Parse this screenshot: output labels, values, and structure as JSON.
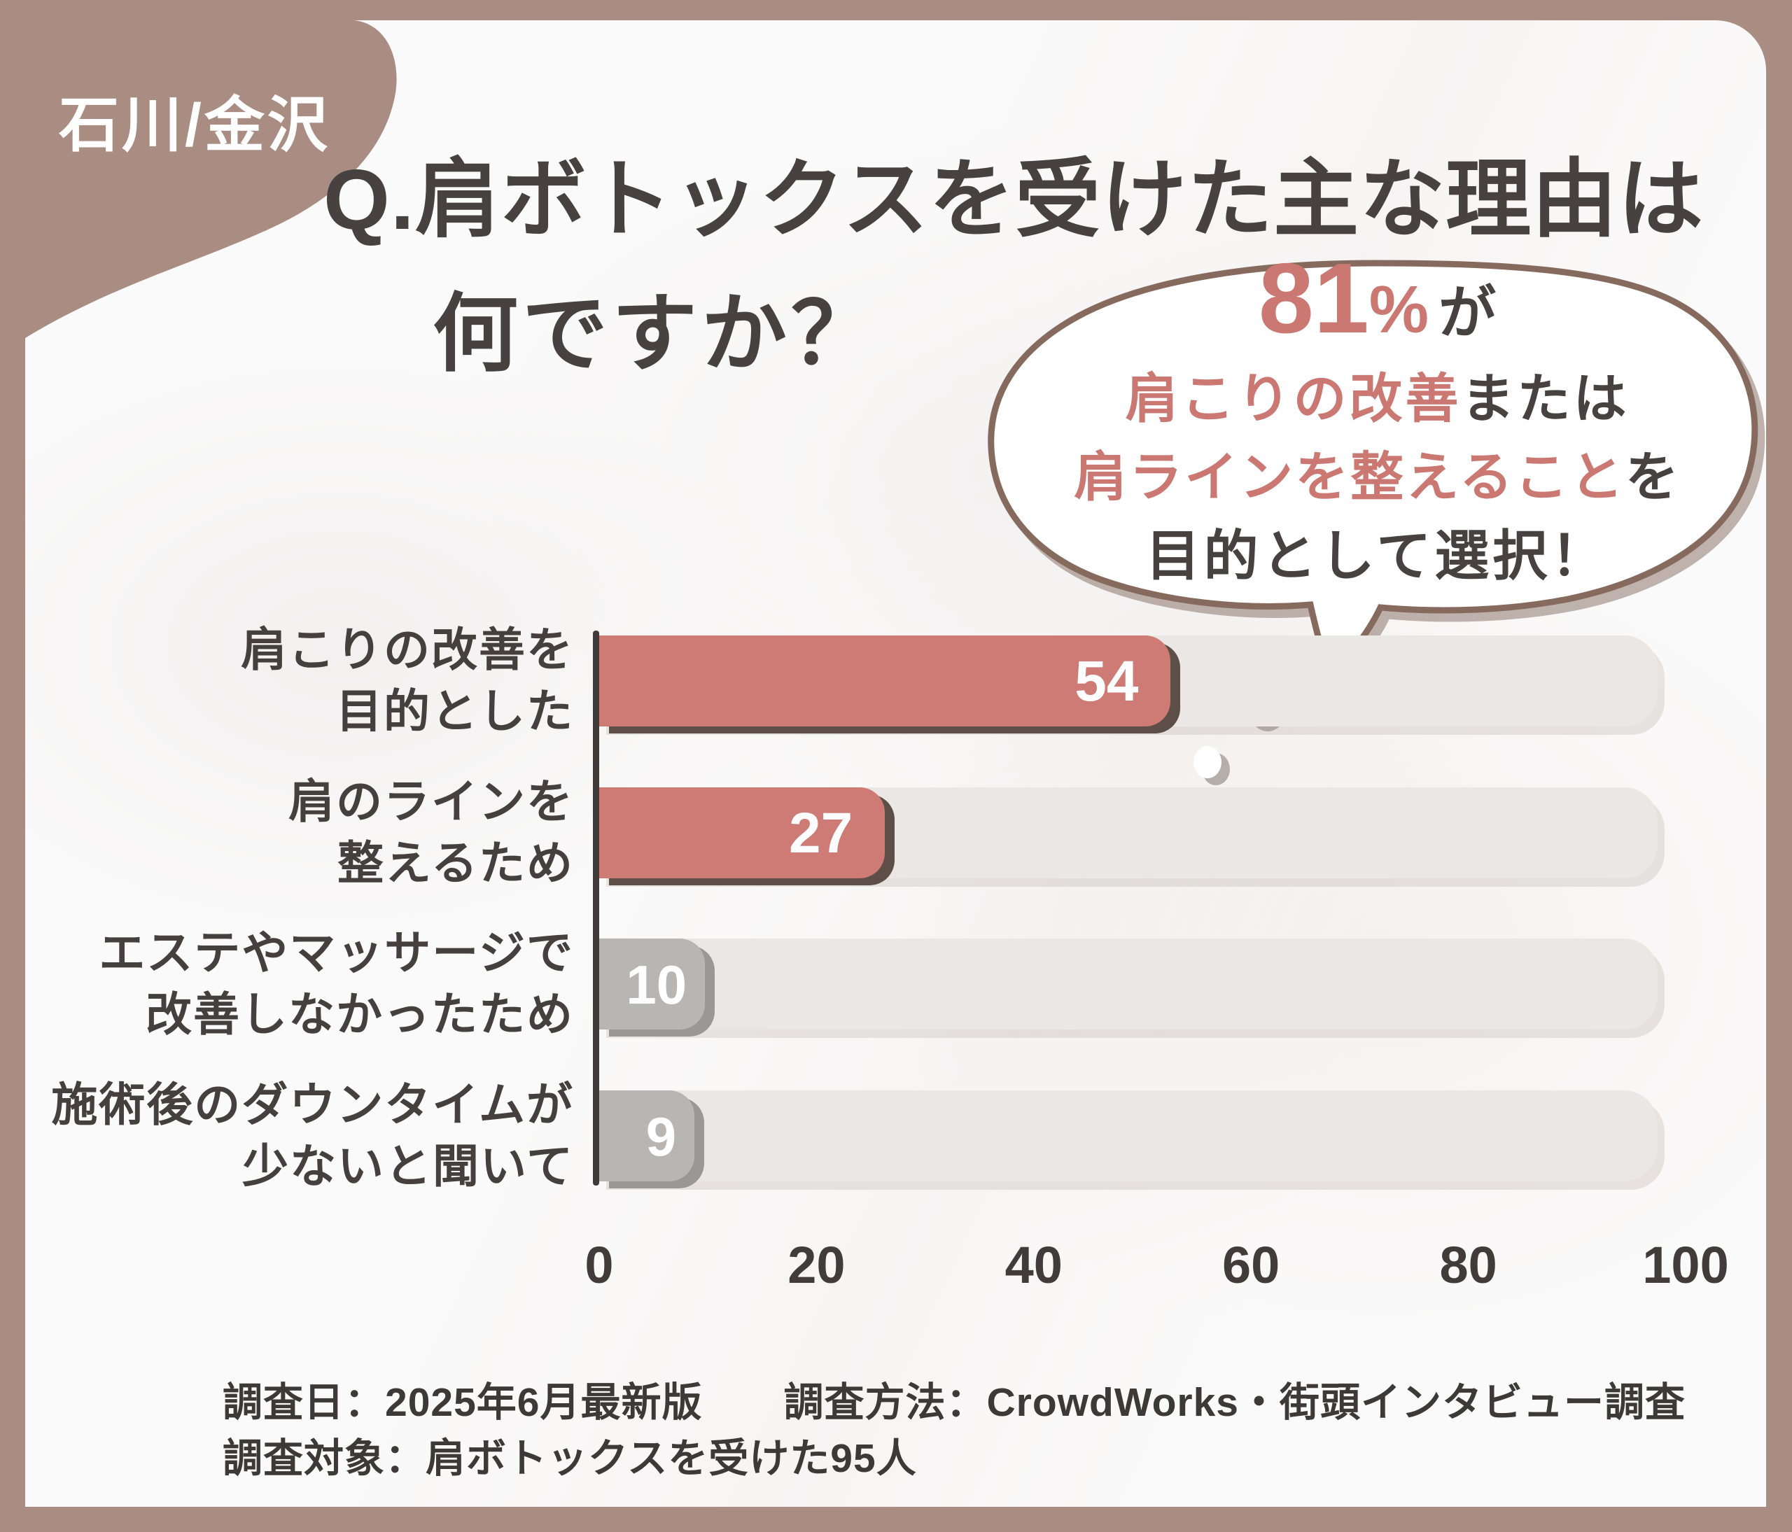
{
  "badge": {
    "label": "石川/金沢"
  },
  "title": {
    "line1": "Q.肩ボトックスを受けた主な理由は",
    "line2": "何ですか？"
  },
  "bubble": {
    "stat": "81",
    "pct": "%",
    "ga": "が",
    "l2_rose": "肩こりの改善",
    "l2_dark": "または",
    "l3_rose": "肩ラインを整えること",
    "l3_dark": "を",
    "l4": "目的として選択！"
  },
  "chart_data": {
    "type": "bar",
    "orientation": "horizontal",
    "title": "Q.肩ボトックスを受けた主な理由は何ですか？",
    "categories": [
      "肩こりの改善を目的とした",
      "肩のラインを整えるため",
      "エステやマッサージで改善しなかったため",
      "施術後のダウンタイムが少ないと聞いて"
    ],
    "category_lines": [
      [
        "肩こりの改善を",
        "目的とした"
      ],
      [
        "肩のラインを",
        "整えるため"
      ],
      [
        "エステやマッサージで",
        "改善しなかったため"
      ],
      [
        "施術後のダウンタイムが",
        "少ないと聞いて"
      ]
    ],
    "values": [
      54,
      27,
      10,
      9
    ],
    "xlabel": "",
    "ylabel": "",
    "xlim": [
      0,
      100
    ],
    "x_ticks": [
      0,
      20,
      40,
      60,
      80,
      100
    ],
    "grid": false,
    "legend": null,
    "bar_colors": [
      "#cd7b74",
      "#cd7b74",
      "#b8b6b5",
      "#b8b6b5"
    ],
    "bar_shadow_colors": [
      "#5d4e48",
      "#5d4e48",
      "#9a9897",
      "#9a9897"
    ],
    "track_color": "#ebe7e4",
    "value_text_color": "#ffffff"
  },
  "footer": {
    "line1": "調査日：2025年6月最新版　　調査方法：CrowdWorks・街頭インタビュー調査",
    "line2": "調査対象：肩ボトックスを受けた95人"
  },
  "colors": {
    "frame": "#a98c82",
    "card_bg": "#fbfafa",
    "accent_rose": "#cb7873",
    "text_dark": "#474241",
    "bubble_outline": "#876a5e",
    "axis": "#3f3a38"
  }
}
